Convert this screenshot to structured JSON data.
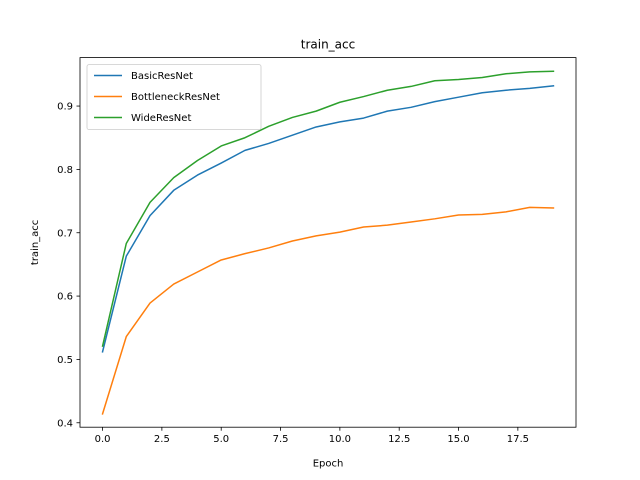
{
  "chart_data": {
    "type": "line",
    "title": "train_acc",
    "xlabel": "Epoch",
    "ylabel": "train_acc",
    "xlim": [
      -0.95,
      19.95
    ],
    "ylim": [
      0.393,
      0.9765
    ],
    "xticks": [
      0.0,
      2.5,
      5.0,
      7.5,
      10.0,
      12.5,
      15.0,
      17.5
    ],
    "xtick_labels": [
      "0.0",
      "2.5",
      "5.0",
      "7.5",
      "10.0",
      "12.5",
      "15.0",
      "17.5"
    ],
    "yticks": [
      0.4,
      0.5,
      0.6,
      0.7,
      0.8,
      0.9
    ],
    "ytick_labels": [
      "0.4",
      "0.5",
      "0.6",
      "0.7",
      "0.8",
      "0.9"
    ],
    "grid": false,
    "legend_position": "top-left",
    "x": [
      0,
      1,
      2,
      3,
      4,
      5,
      6,
      7,
      8,
      9,
      10,
      11,
      12,
      13,
      14,
      15,
      16,
      17,
      18,
      19
    ],
    "series": [
      {
        "name": "BasicResNet",
        "color": "#1f77b4",
        "values": [
          0.512,
          0.663,
          0.727,
          0.767,
          0.791,
          0.81,
          0.83,
          0.841,
          0.854,
          0.867,
          0.875,
          0.881,
          0.892,
          0.898,
          0.907,
          0.914,
          0.921,
          0.925,
          0.928,
          0.932
        ]
      },
      {
        "name": "BottleneckResNet",
        "color": "#ff7f0e",
        "values": [
          0.414,
          0.536,
          0.589,
          0.619,
          0.638,
          0.657,
          0.667,
          0.676,
          0.687,
          0.695,
          0.701,
          0.709,
          0.712,
          0.717,
          0.722,
          0.728,
          0.729,
          0.733,
          0.74,
          0.739
        ]
      },
      {
        "name": "WideResNet",
        "color": "#2ca02c",
        "values": [
          0.521,
          0.683,
          0.748,
          0.787,
          0.814,
          0.837,
          0.85,
          0.868,
          0.882,
          0.892,
          0.906,
          0.915,
          0.925,
          0.931,
          0.94,
          0.942,
          0.945,
          0.951,
          0.954,
          0.955
        ]
      }
    ]
  }
}
